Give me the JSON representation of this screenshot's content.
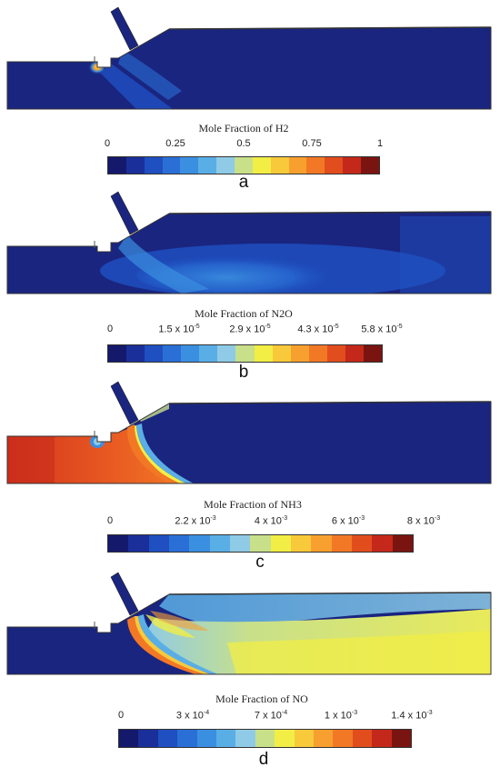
{
  "colormap": [
    "#15196b",
    "#1a2f9a",
    "#1f4fc0",
    "#2a6fd6",
    "#3b8fe0",
    "#5aaee6",
    "#8fcbe6",
    "#c8e08a",
    "#f2ee45",
    "#f8c93a",
    "#f7a02f",
    "#f27826",
    "#e24d1e",
    "#c4281a",
    "#7a1410"
  ],
  "panels": [
    {
      "label": "a",
      "colorbar_title": "Mole Fraction of H2",
      "ticks": [
        {
          "text": "0"
        },
        {
          "text": "0.25"
        },
        {
          "text": "0.5"
        },
        {
          "text": "0.75"
        },
        {
          "text": "1"
        }
      ]
    },
    {
      "label": "b",
      "colorbar_title": "Mole Fraction of N2O",
      "ticks": [
        {
          "text": "0"
        },
        {
          "mant": "1.5 x 10",
          "exp": "-5"
        },
        {
          "mant": "2.9 x 10",
          "exp": "-5"
        },
        {
          "mant": "4.3 x 10",
          "exp": "-5"
        },
        {
          "mant": "5.8 x 10",
          "exp": "-5"
        }
      ]
    },
    {
      "label": "c",
      "colorbar_title": "Mole Fraction of NH3",
      "ticks": [
        {
          "text": "0"
        },
        {
          "mant": "2.2 x 10",
          "exp": "-3"
        },
        {
          "mant": "4 x 10",
          "exp": "-3"
        },
        {
          "mant": "6 x 10",
          "exp": "-3"
        },
        {
          "mant": "8  x 10",
          "exp": "-3"
        }
      ]
    },
    {
      "label": "d",
      "colorbar_title": "Mole Fraction of NO",
      "ticks": [
        {
          "text": "0"
        },
        {
          "mant": "3 x 10",
          "exp": "-4"
        },
        {
          "mant": "7 x 10",
          "exp": "-4"
        },
        {
          "mant": "1 x 10",
          "exp": "-3"
        },
        {
          "mant": "1.4 x 10",
          "exp": "-3"
        }
      ]
    }
  ]
}
